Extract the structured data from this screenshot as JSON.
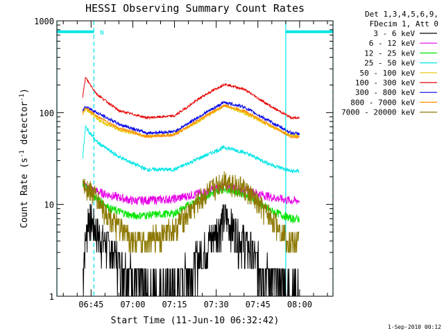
{
  "chart_data": {
    "type": "line",
    "title": "HESSI Observing Summary Count Rates",
    "xlabel": "Start Time (11-Jun-10 06:32:42)",
    "ylabel_main": "Count Rate (s",
    "ylabel_sup1": "-1",
    "ylabel_mid": " detector",
    "ylabel_sup2": "-1",
    "ylabel_end": ")",
    "y_scale": "log",
    "ylim": [
      1,
      1000
    ],
    "xlim": [
      "06:32:42",
      "08:12:00"
    ],
    "x_ticks": [
      "06:45",
      "07:00",
      "07:15",
      "07:30",
      "07:45",
      "08:00"
    ],
    "y_ticks": [
      "1",
      "10",
      "100",
      "1000"
    ],
    "legend_header": [
      "Det 1,3,4,5,6,9,",
      "FDecim 1, Att 0"
    ],
    "legend_placement": "right",
    "footer_date": "1-Sep-2010 00:12",
    "flag_label": "N",
    "flag_color": "#00e5e5",
    "night_intervals": [
      [
        "06:32:42",
        "06:46:00"
      ],
      [
        "07:55:00",
        "08:12:00"
      ]
    ],
    "series": [
      {
        "name": "3 - 6 keV",
        "color": "#000000",
        "x": [
          "06:42",
          "06:44",
          "06:47",
          "06:55",
          "07:05",
          "07:15",
          "07:25",
          "07:33",
          "07:40",
          "07:50",
          "07:57",
          "08:00"
        ],
        "values": [
          2,
          8,
          5,
          2.5,
          1.2,
          1.3,
          3,
          7.5,
          4,
          1.5,
          1.2,
          1.3
        ]
      },
      {
        "name": "6 - 12 keV",
        "color": "#e600e6",
        "x": [
          "06:42",
          "06:44",
          "06:50",
          "07:00",
          "07:15",
          "07:25",
          "07:33",
          "07:40",
          "07:50",
          "07:57",
          "08:00"
        ],
        "values": [
          16,
          15,
          13,
          11,
          11.5,
          13.5,
          16,
          14.5,
          12,
          11,
          11
        ]
      },
      {
        "name": "12 - 25 keV",
        "color": "#00e600",
        "x": [
          "06:42",
          "06:45",
          "06:52",
          "07:00",
          "07:15",
          "07:25",
          "07:33",
          "07:40",
          "07:50",
          "07:57",
          "08:00"
        ],
        "values": [
          17,
          13,
          9,
          7.5,
          8,
          12,
          15,
          13,
          8.5,
          7,
          7
        ]
      },
      {
        "name": "25 - 50 keV",
        "color": "#00e5e5",
        "x": [
          "06:42",
          "06:43",
          "06:47",
          "06:55",
          "07:05",
          "07:15",
          "07:25",
          "07:33",
          "07:40",
          "07:50",
          "07:57",
          "08:00"
        ],
        "values": [
          33,
          70,
          48,
          33,
          24,
          24,
          33,
          42,
          37,
          27,
          23,
          23
        ]
      },
      {
        "name": "50 - 100 keV",
        "color": "#e6c800",
        "x": [
          "06:42",
          "06:43",
          "06:47",
          "06:55",
          "07:05",
          "07:15",
          "07:25",
          "07:33",
          "07:40",
          "07:50",
          "07:57",
          "08:00"
        ],
        "values": [
          95,
          110,
          85,
          65,
          55,
          58,
          85,
          120,
          100,
          70,
          56,
          56
        ]
      },
      {
        "name": "100 - 300 keV",
        "color": "#e60000",
        "x": [
          "06:42",
          "06:43",
          "06:47",
          "06:55",
          "07:05",
          "07:15",
          "07:25",
          "07:33",
          "07:40",
          "07:50",
          "07:57",
          "08:00"
        ],
        "values": [
          150,
          240,
          160,
          105,
          88,
          92,
          150,
          205,
          180,
          115,
          88,
          87
        ]
      },
      {
        "name": "300 - 800 keV",
        "color": "#0000e6",
        "x": [
          "06:42",
          "06:43",
          "06:47",
          "06:55",
          "07:05",
          "07:15",
          "07:25",
          "07:33",
          "07:40",
          "07:50",
          "07:57",
          "08:00"
        ],
        "values": [
          105,
          118,
          100,
          75,
          60,
          62,
          95,
          130,
          115,
          78,
          60,
          59
        ]
      },
      {
        "name": "800 - 7000 keV",
        "color": "#ff8c00",
        "x": [
          "06:42",
          "06:43",
          "06:47",
          "06:55",
          "07:05",
          "07:15",
          "07:25",
          "07:33",
          "07:40",
          "07:50",
          "07:57",
          "08:00"
        ],
        "values": [
          100,
          112,
          92,
          68,
          55,
          57,
          88,
          120,
          105,
          72,
          54,
          54
        ]
      },
      {
        "name": "7000 - 20000 keV",
        "color": "#8c7800",
        "x": [
          "06:42",
          "06:45",
          "06:52",
          "07:00",
          "07:05",
          "07:15",
          "07:25",
          "07:33",
          "07:40",
          "07:50",
          "07:57",
          "08:00"
        ],
        "values": [
          17,
          14,
          7,
          4,
          4,
          5.5,
          12,
          19,
          15,
          7,
          4,
          4
        ]
      }
    ]
  }
}
